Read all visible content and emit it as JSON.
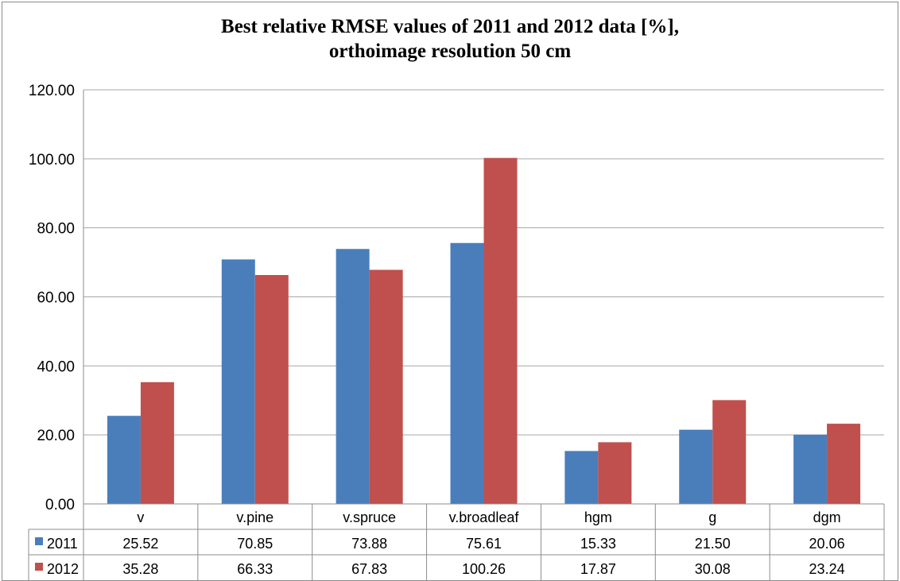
{
  "chart_data": {
    "type": "bar",
    "title_lines": [
      "Best relative RMSE values of 2011 and 2012 data [%],",
      "orthoimage resolution 50 cm"
    ],
    "categories": [
      "v",
      "v.pine",
      "v.spruce",
      "v.broadleaf",
      "hgm",
      "g",
      "dgm"
    ],
    "series": [
      {
        "name": "2011",
        "color": "#4a7ebb",
        "values": [
          25.52,
          70.85,
          73.88,
          75.61,
          15.33,
          21.5,
          20.06
        ],
        "labels": [
          "25.52",
          "70.85",
          "73.88",
          "75.61",
          "15.33",
          "21.50",
          "20.06"
        ]
      },
      {
        "name": "2012",
        "color": "#c0504d",
        "values": [
          35.28,
          66.33,
          67.83,
          100.26,
          17.87,
          30.08,
          23.24
        ],
        "labels": [
          "35.28",
          "66.33",
          "67.83",
          "100.26",
          "17.87",
          "30.08",
          "23.24"
        ]
      }
    ],
    "ylim": [
      0,
      120
    ],
    "yticks": [
      "0.00",
      "20.00",
      "40.00",
      "60.00",
      "80.00",
      "100.00",
      "120.00"
    ],
    "grid": true,
    "legend": "data-table"
  }
}
